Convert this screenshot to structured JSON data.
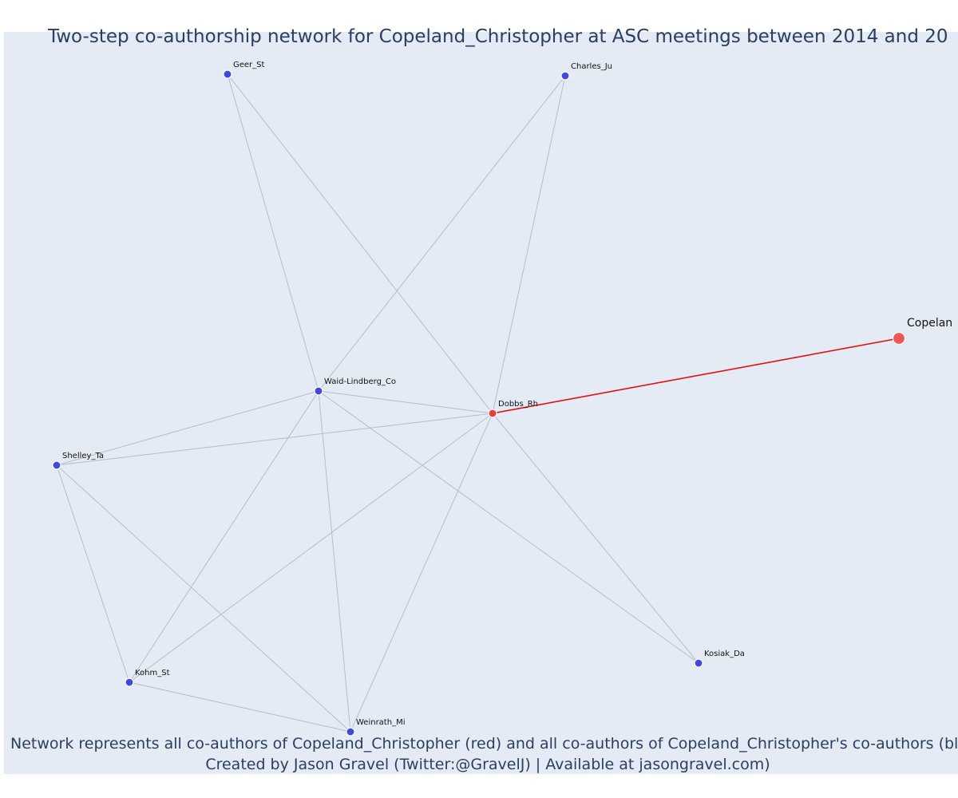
{
  "title": "Two-step co-authorship network for Copeland_Christopher at ASC meetings between 2014 and 20",
  "caption_line1": "Network represents all co-authors of Copeland_Christopher (red) and all co-authors of Copeland_Christopher's co-authors (blue",
  "caption_line2": "Created by Jason Gravel (Twitter:@GravelJ) | Available at jasongravel.com)",
  "colors": {
    "direct": "#ef3b3b",
    "indirect": "#3f48e0",
    "focal": "#f25555",
    "edge": "#b8bcca",
    "focal_edge": "#e30f0f"
  },
  "chart_data": {
    "type": "network",
    "focal_node": "Copeland_Christopher",
    "nodes": [
      {
        "id": "Copeland_Christopher",
        "label": "Copelan",
        "group": "focal"
      },
      {
        "id": "Dobbs_Rh",
        "label": "Dobbs_Rh",
        "group": "direct"
      },
      {
        "id": "Geer_St",
        "label": "Geer_St",
        "group": "indirect"
      },
      {
        "id": "Charles_Ju",
        "label": "Charles_Ju",
        "group": "indirect"
      },
      {
        "id": "Waid-Lindberg_Co",
        "label": "Waid-Lindberg_Co",
        "group": "indirect"
      },
      {
        "id": "Shelley_Ta",
        "label": "Shelley_Ta",
        "group": "indirect"
      },
      {
        "id": "Kohm_St",
        "label": "Kohm_St",
        "group": "indirect"
      },
      {
        "id": "Weinrath_Mi",
        "label": "Weinrath_Mi",
        "group": "indirect"
      },
      {
        "id": "Kosiak_Da",
        "label": "Kosiak_Da",
        "group": "indirect"
      }
    ],
    "edges": [
      [
        "Copeland_Christopher",
        "Dobbs_Rh"
      ],
      [
        "Dobbs_Rh",
        "Geer_St"
      ],
      [
        "Dobbs_Rh",
        "Charles_Ju"
      ],
      [
        "Dobbs_Rh",
        "Waid-Lindberg_Co"
      ],
      [
        "Dobbs_Rh",
        "Shelley_Ta"
      ],
      [
        "Dobbs_Rh",
        "Kohm_St"
      ],
      [
        "Dobbs_Rh",
        "Weinrath_Mi"
      ],
      [
        "Dobbs_Rh",
        "Kosiak_Da"
      ],
      [
        "Waid-Lindberg_Co",
        "Geer_St"
      ],
      [
        "Waid-Lindberg_Co",
        "Charles_Ju"
      ],
      [
        "Waid-Lindberg_Co",
        "Shelley_Ta"
      ],
      [
        "Waid-Lindberg_Co",
        "Kohm_St"
      ],
      [
        "Waid-Lindberg_Co",
        "Weinrath_Mi"
      ],
      [
        "Waid-Lindberg_Co",
        "Kosiak_Da"
      ],
      [
        "Shelley_Ta",
        "Kohm_St"
      ],
      [
        "Shelley_Ta",
        "Weinrath_Mi"
      ],
      [
        "Kohm_St",
        "Weinrath_Mi"
      ]
    ]
  }
}
